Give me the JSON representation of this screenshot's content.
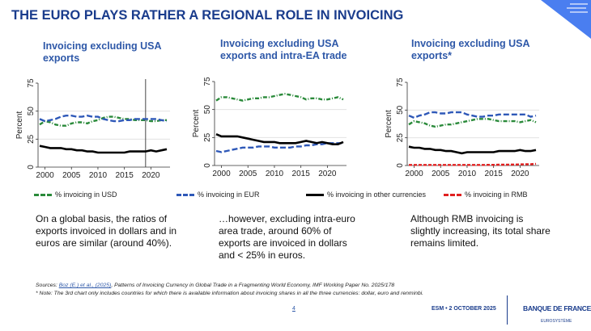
{
  "title": "THE EURO PLAYS RATHER A REGIONAL ROLE IN INVOICING",
  "legend": [
    {
      "label": "% invoicing in USD",
      "color": "#2a8a3a"
    },
    {
      "label": "% invoicing in EUR",
      "color": "#2e58b8"
    },
    {
      "label": "% invoicing in other currencies",
      "color": "#000000"
    },
    {
      "label": "% invoicing in RMB",
      "color": "#e02020"
    }
  ],
  "paragraphs": [
    "On a global basis, the ratios of exports invoiced in dollars and in euros are similar (around 40%).",
    "…however, excluding intra-euro area trade, around 60% of exports are invoiced in dollars and < 25% in euros.",
    "Although RMB invoicing is slightly increasing, its total share remains limited."
  ],
  "footer": {
    "sources_prefix": "Sources: ",
    "sources_link": "Boz (E.) et al., (2025)",
    "sources_text": ", Patterns of Invoicing Currency in Global Trade in a Fragmenting World Economy, IMF  Working Paper No. 2025/178",
    "note": "* Note: The 3rd chart only includes countries for which there is available information about invoicing shares in all the three currencies: dollar, euro and renminbi.",
    "page": "4",
    "event": "ESM • 2 OCTOBER 2025",
    "logo": "BANQUE DE FRANCE",
    "logo_sub": "EUROSYSTÈME"
  },
  "chart_data": [
    {
      "type": "line",
      "title": "Invoicing excluding USA exports",
      "ylabel": "Percent",
      "ylim": [
        0,
        75
      ],
      "yticks": [
        "0",
        "25",
        "50",
        "75"
      ],
      "xticks": [
        "2000",
        "2005",
        "2010",
        "2015",
        "2020"
      ],
      "grid": true,
      "vertical_marker": 2019,
      "x": [
        1999,
        2000,
        2001,
        2002,
        2003,
        2004,
        2005,
        2006,
        2007,
        2008,
        2009,
        2010,
        2011,
        2012,
        2013,
        2014,
        2015,
        2016,
        2017,
        2018,
        2019,
        2020,
        2021,
        2022,
        2023
      ],
      "series": [
        {
          "name": "% invoicing in USD",
          "values": [
            38,
            41,
            40,
            38,
            37,
            37,
            39,
            40,
            40,
            39,
            41,
            42,
            44,
            45,
            45,
            44,
            43,
            43,
            42,
            42,
            42,
            41,
            41,
            42,
            42
          ]
        },
        {
          "name": "% invoicing in EUR",
          "values": [
            43,
            41,
            42,
            43,
            45,
            46,
            46,
            45,
            45,
            46,
            45,
            45,
            43,
            42,
            41,
            41,
            42,
            42,
            43,
            43,
            43,
            43,
            43,
            42,
            41
          ]
        },
        {
          "name": "% invoicing in other currencies",
          "values": [
            19,
            18,
            17,
            17,
            17,
            16,
            16,
            15,
            15,
            14,
            14,
            13,
            13,
            13,
            13,
            13,
            13,
            14,
            14,
            14,
            14,
            15,
            14,
            15,
            16
          ]
        }
      ]
    },
    {
      "type": "line",
      "title": "Invoicing excluding USA exports and intra-EA trade",
      "ylabel": "Percent",
      "ylim": [
        0,
        75
      ],
      "yticks": [
        "0",
        "25",
        "50",
        "75"
      ],
      "xticks": [
        "2000",
        "2005",
        "2010",
        "2015",
        "2020"
      ],
      "grid": true,
      "x": [
        1999,
        2000,
        2001,
        2002,
        2003,
        2004,
        2005,
        2006,
        2007,
        2008,
        2009,
        2010,
        2011,
        2012,
        2013,
        2014,
        2015,
        2016,
        2017,
        2018,
        2019,
        2020,
        2021,
        2022,
        2023
      ],
      "series": [
        {
          "name": "% invoicing in USD",
          "values": [
            58,
            61,
            61,
            60,
            59,
            58,
            59,
            60,
            60,
            61,
            61,
            62,
            63,
            64,
            63,
            62,
            61,
            59,
            60,
            60,
            59,
            59,
            60,
            61,
            59
          ]
        },
        {
          "name": "% invoicing in EUR",
          "values": [
            13,
            12,
            13,
            14,
            15,
            16,
            16,
            16,
            17,
            17,
            17,
            16,
            16,
            16,
            16,
            17,
            17,
            18,
            18,
            19,
            19,
            20,
            20,
            20,
            20
          ]
        },
        {
          "name": "% invoicing in other currencies",
          "values": [
            28,
            26,
            26,
            26,
            26,
            25,
            24,
            23,
            22,
            21,
            21,
            21,
            20,
            20,
            20,
            20,
            21,
            22,
            21,
            20,
            21,
            20,
            19,
            19,
            21
          ]
        }
      ]
    },
    {
      "type": "line",
      "title": "Invoicing excluding USA exports*",
      "ylabel": "Percent",
      "ylim": [
        0,
        75
      ],
      "yticks": [
        "0",
        "25",
        "50",
        "75"
      ],
      "xticks": [
        "2000",
        "2005",
        "2010",
        "2015",
        "2020"
      ],
      "grid": true,
      "x": [
        1999,
        2000,
        2001,
        2002,
        2003,
        2004,
        2005,
        2006,
        2007,
        2008,
        2009,
        2010,
        2011,
        2012,
        2013,
        2014,
        2015,
        2016,
        2017,
        2018,
        2019,
        2020,
        2021,
        2022,
        2023
      ],
      "series": [
        {
          "name": "% invoicing in USD",
          "values": [
            37,
            40,
            39,
            38,
            36,
            35,
            36,
            37,
            37,
            38,
            39,
            40,
            41,
            42,
            42,
            42,
            41,
            40,
            40,
            40,
            40,
            39,
            40,
            41,
            39
          ]
        },
        {
          "name": "% invoicing in EUR",
          "values": [
            45,
            43,
            45,
            46,
            48,
            48,
            47,
            47,
            48,
            48,
            48,
            46,
            45,
            44,
            44,
            45,
            45,
            46,
            46,
            46,
            46,
            46,
            46,
            44,
            45
          ]
        },
        {
          "name": "% invoicing in other currencies",
          "values": [
            17,
            16,
            16,
            15,
            15,
            14,
            14,
            13,
            13,
            12,
            11,
            12,
            12,
            12,
            12,
            12,
            12,
            13,
            13,
            13,
            13,
            14,
            13,
            13,
            14
          ]
        },
        {
          "name": "% invoicing in RMB",
          "values": [
            0.5,
            0.5,
            0.5,
            0.5,
            0.5,
            0.5,
            0.5,
            0.5,
            0.5,
            0.5,
            0.5,
            0.5,
            0.5,
            0.5,
            0.5,
            0.6,
            0.6,
            0.7,
            0.7,
            0.8,
            0.9,
            1.0,
            1.1,
            1.2,
            1.5
          ]
        }
      ]
    }
  ]
}
